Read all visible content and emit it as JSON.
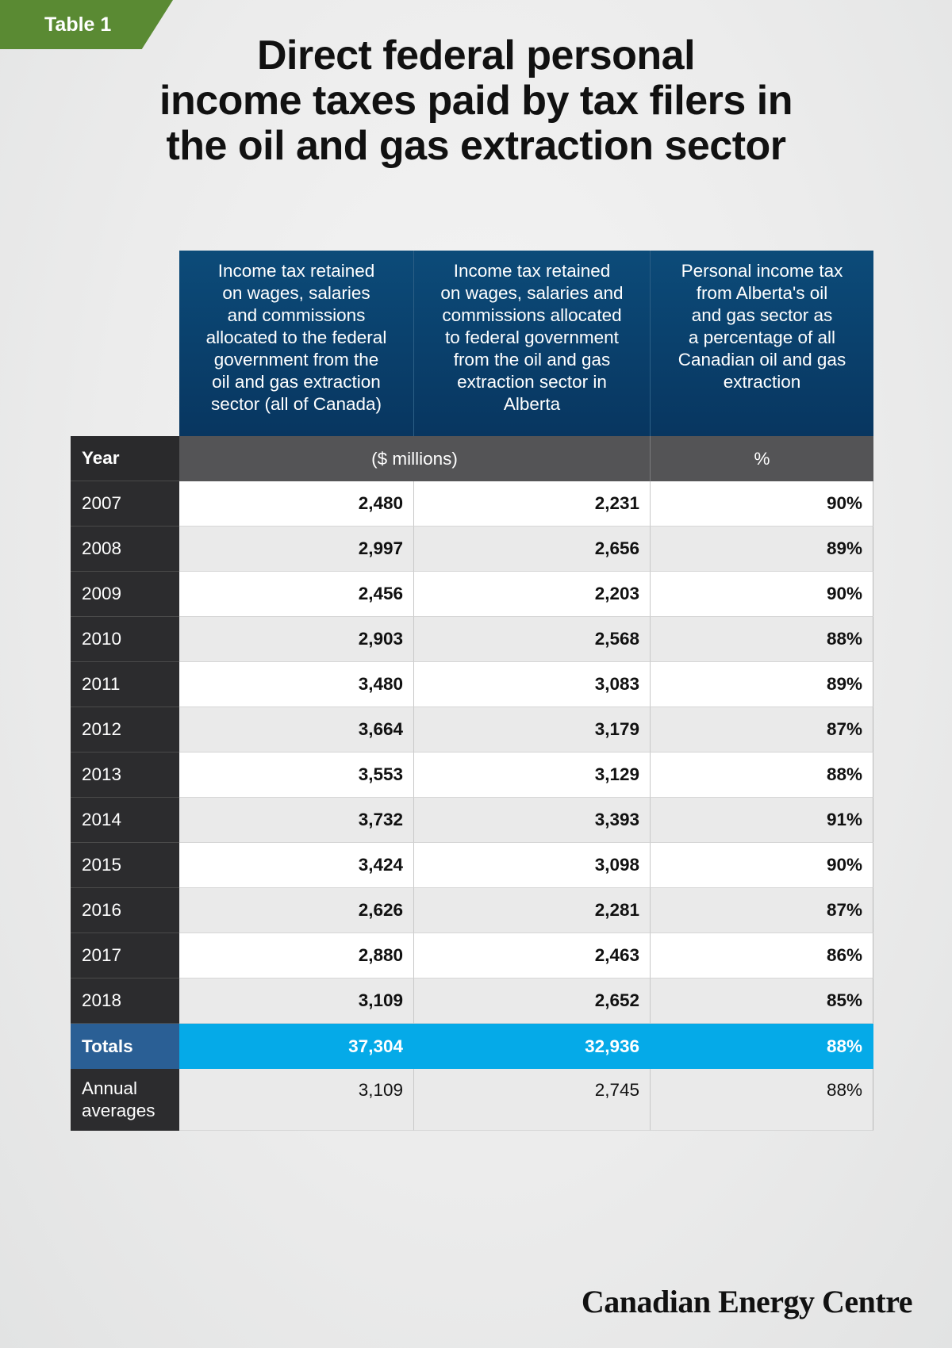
{
  "tag": "Table 1",
  "title": "Direct federal personal\nincome taxes paid by tax filers in\nthe oil and gas extraction sector",
  "columns": [
    "Income tax retained\non wages, salaries\nand commissions\nallocated to the federal\ngovernment from the\noil and gas extraction\nsector (all of Canada)",
    "Income tax retained\non wages, salaries and\ncommissions allocated\nto federal government\nfrom the oil and gas\nextraction sector in\nAlberta",
    "Personal income tax\nfrom Alberta's oil\nand gas sector as\na percentage of all\nCanadian oil and gas\nextraction"
  ],
  "subheader": {
    "year": "Year",
    "units_money": "($ millions)",
    "units_pct": "%"
  },
  "rows": [
    {
      "year": "2007",
      "canada": "2,480",
      "alberta": "2,231",
      "pct": "90%"
    },
    {
      "year": "2008",
      "canada": "2,997",
      "alberta": "2,656",
      "pct": "89%"
    },
    {
      "year": "2009",
      "canada": "2,456",
      "alberta": "2,203",
      "pct": "90%"
    },
    {
      "year": "2010",
      "canada": "2,903",
      "alberta": "2,568",
      "pct": "88%"
    },
    {
      "year": "2011",
      "canada": "3,480",
      "alberta": "3,083",
      "pct": "89%"
    },
    {
      "year": "2012",
      "canada": "3,664",
      "alberta": "3,179",
      "pct": "87%"
    },
    {
      "year": "2013",
      "canada": "3,553",
      "alberta": "3,129",
      "pct": "88%"
    },
    {
      "year": "2014",
      "canada": "3,732",
      "alberta": "3,393",
      "pct": "91%"
    },
    {
      "year": "2015",
      "canada": "3,424",
      "alberta": "3,098",
      "pct": "90%"
    },
    {
      "year": "2016",
      "canada": "2,626",
      "alberta": "2,281",
      "pct": "87%"
    },
    {
      "year": "2017",
      "canada": "2,880",
      "alberta": "2,463",
      "pct": "86%"
    },
    {
      "year": "2018",
      "canada": "3,109",
      "alberta": "2,652",
      "pct": "85%"
    }
  ],
  "totals": {
    "label": "Totals",
    "canada": "37,304",
    "alberta": "32,936",
    "pct": "88%"
  },
  "averages": {
    "label": "Annual\naverages",
    "canada": "3,109",
    "alberta": "2,745",
    "pct": "88%"
  },
  "brand": "Canadian Energy Centre",
  "colors": {
    "tag": "#5a8a33",
    "header": "#0c4b79",
    "totals": "#05aae8",
    "year_col": "#2c2c2e"
  }
}
